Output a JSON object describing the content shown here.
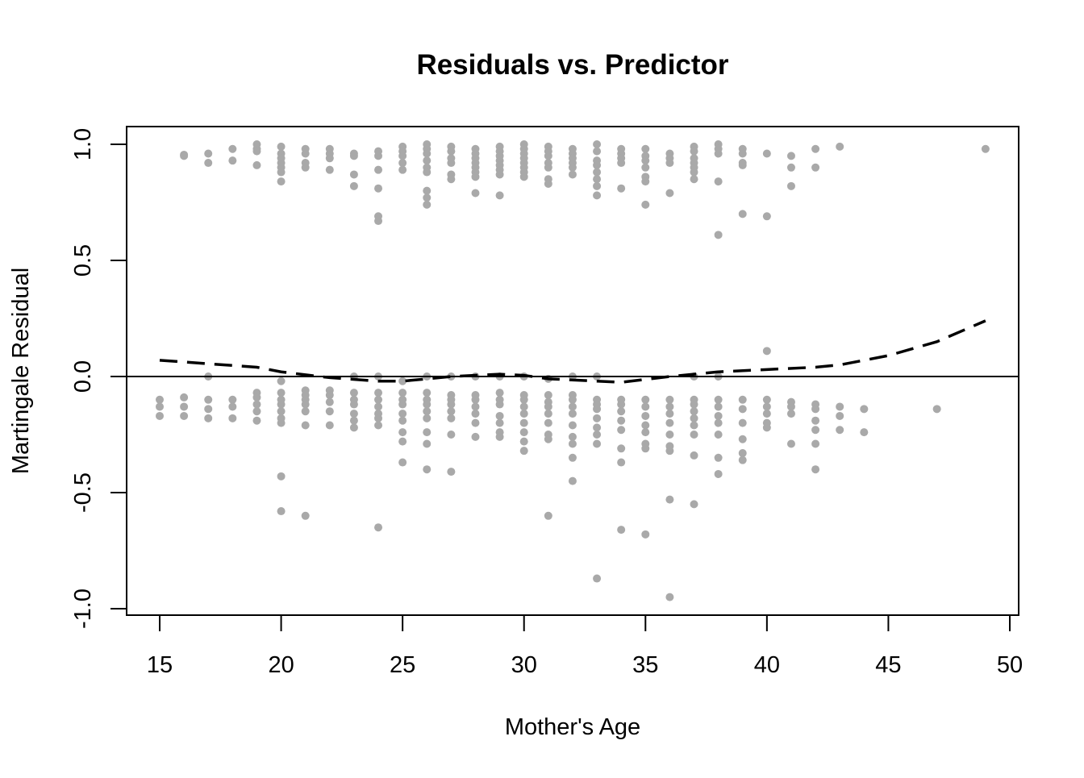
{
  "chart_data": {
    "type": "scatter",
    "title": "Residuals vs. Predictor",
    "xlabel": "Mother's Age",
    "ylabel": "Martingale Residual",
    "xlim": [
      13.7,
      50.4
    ],
    "ylim": [
      -1.03,
      1.08
    ],
    "xticks": [
      "15",
      "20",
      "25",
      "30",
      "35",
      "40",
      "45",
      "50"
    ],
    "yticks": [
      "-1.0",
      "-0.5",
      "0.0",
      "0.5",
      "1.0"
    ],
    "grid": false,
    "reference_line_y": 0,
    "point_color": "#A9A9A9",
    "smooth_color": "#000000",
    "points": [
      {
        "x": 15,
        "y": [
          -0.1,
          -0.13,
          -0.17
        ]
      },
      {
        "x": 16,
        "y": [
          0.955,
          0.95,
          -0.09,
          -0.13,
          -0.17
        ]
      },
      {
        "x": 17,
        "y": [
          0.96,
          0.92,
          0,
          -0.1,
          -0.14,
          -0.18
        ]
      },
      {
        "x": 18,
        "y": [
          0.98,
          0.93,
          -0.1,
          -0.13,
          -0.18
        ]
      },
      {
        "x": 19,
        "y": [
          1.0,
          0.98,
          0.97,
          0.91,
          -0.07,
          -0.09,
          -0.12,
          -0.15,
          -0.19
        ]
      },
      {
        "x": 20,
        "y": [
          0.99,
          0.96,
          0.94,
          0.92,
          0.9,
          0.88,
          0.84,
          -0.02,
          -0.07,
          -0.1,
          -0.12,
          -0.15,
          -0.18,
          -0.2,
          -0.43,
          -0.58
        ]
      },
      {
        "x": 21,
        "y": [
          0.98,
          0.96,
          0.92,
          0.9,
          -0.06,
          -0.08,
          -0.1,
          -0.12,
          -0.15,
          -0.21,
          -0.6
        ]
      },
      {
        "x": 22,
        "y": [
          0.98,
          0.96,
          0.94,
          0.89,
          -0.06,
          -0.08,
          -0.11,
          -0.15,
          -0.21
        ]
      },
      {
        "x": 23,
        "y": [
          0.96,
          0.95,
          0.87,
          0.82,
          0,
          -0.07,
          -0.1,
          -0.12,
          -0.16,
          -0.19,
          -0.22
        ]
      },
      {
        "x": 24,
        "y": [
          0.97,
          0.95,
          0.89,
          0.81,
          0.69,
          0.67,
          0,
          -0.07,
          -0.1,
          -0.13,
          -0.16,
          -0.18,
          -0.21,
          -0.65
        ]
      },
      {
        "x": 25,
        "y": [
          0.99,
          0.97,
          0.95,
          0.92,
          0.89,
          -0.02,
          -0.07,
          -0.1,
          -0.12,
          -0.16,
          -0.19,
          -0.24,
          -0.28,
          -0.37
        ]
      },
      {
        "x": 26,
        "y": [
          1.0,
          0.98,
          0.96,
          0.93,
          0.9,
          0.88,
          0.8,
          0.77,
          0.74,
          0,
          -0.07,
          -0.1,
          -0.12,
          -0.15,
          -0.18,
          -0.24,
          -0.29,
          -0.4
        ]
      },
      {
        "x": 27,
        "y": [
          0.99,
          0.97,
          0.94,
          0.92,
          0.87,
          0.85,
          0,
          -0.08,
          -0.1,
          -0.12,
          -0.15,
          -0.18,
          -0.25,
          -0.41
        ]
      },
      {
        "x": 28,
        "y": [
          0.98,
          0.96,
          0.94,
          0.92,
          0.9,
          0.88,
          0.86,
          0.79,
          0,
          -0.08,
          -0.1,
          -0.13,
          -0.16,
          -0.2,
          -0.26
        ]
      },
      {
        "x": 29,
        "y": [
          0.99,
          0.97,
          0.95,
          0.93,
          0.91,
          0.89,
          0.87,
          0.78,
          0,
          -0.07,
          -0.1,
          -0.12,
          -0.17,
          -0.2,
          -0.24,
          -0.26
        ]
      },
      {
        "x": 30,
        "y": [
          1.0,
          0.98,
          0.96,
          0.94,
          0.92,
          0.9,
          0.88,
          0.86,
          0,
          -0.08,
          -0.1,
          -0.13,
          -0.16,
          -0.2,
          -0.24,
          -0.28,
          -0.32
        ]
      },
      {
        "x": 31,
        "y": [
          0.99,
          0.97,
          0.95,
          0.92,
          0.9,
          0.85,
          0.83,
          -0.01,
          -0.08,
          -0.11,
          -0.13,
          -0.16,
          -0.2,
          -0.25,
          -0.27,
          -0.6
        ]
      },
      {
        "x": 32,
        "y": [
          0.98,
          0.96,
          0.94,
          0.92,
          0.9,
          0.87,
          0,
          -0.08,
          -0.1,
          -0.13,
          -0.16,
          -0.21,
          -0.26,
          -0.29,
          -0.35,
          -0.45
        ]
      },
      {
        "x": 33,
        "y": [
          1.0,
          0.97,
          0.93,
          0.91,
          0.88,
          0.85,
          0.82,
          0.78,
          0,
          -0.1,
          -0.12,
          -0.14,
          -0.18,
          -0.22,
          -0.25,
          -0.29,
          -0.87
        ]
      },
      {
        "x": 34,
        "y": [
          0.98,
          0.96,
          0.94,
          0.92,
          0.81,
          -0.1,
          -0.12,
          -0.15,
          -0.19,
          -0.23,
          -0.31,
          -0.37,
          -0.66
        ]
      },
      {
        "x": 35,
        "y": [
          0.98,
          0.95,
          0.93,
          0.9,
          0.86,
          0.84,
          0.74,
          -0.1,
          -0.13,
          -0.17,
          -0.21,
          -0.24,
          -0.29,
          -0.31,
          -0.68
        ]
      },
      {
        "x": 36,
        "y": [
          0.96,
          0.94,
          0.92,
          0.79,
          -0.1,
          -0.13,
          -0.16,
          -0.2,
          -0.25,
          -0.3,
          -0.32,
          -0.53,
          -0.95
        ]
      },
      {
        "x": 37,
        "y": [
          0.99,
          0.97,
          0.94,
          0.92,
          0.9,
          0.88,
          0.85,
          0,
          -0.1,
          -0.12,
          -0.15,
          -0.18,
          -0.21,
          -0.25,
          -0.34,
          -0.55
        ]
      },
      {
        "x": 38,
        "y": [
          1.0,
          0.98,
          0.96,
          0.84,
          0.61,
          0,
          -0.1,
          -0.13,
          -0.17,
          -0.2,
          -0.25,
          -0.35,
          -0.42
        ]
      },
      {
        "x": 39,
        "y": [
          0.98,
          0.96,
          0.92,
          0.91,
          0.7,
          -0.1,
          -0.14,
          -0.2,
          -0.27,
          -0.33,
          -0.36
        ]
      },
      {
        "x": 40,
        "y": [
          0.96,
          0.69,
          0.11,
          -0.1,
          -0.13,
          -0.16,
          -0.2,
          -0.22
        ]
      },
      {
        "x": 41,
        "y": [
          0.95,
          0.9,
          0.82,
          -0.11,
          -0.13,
          -0.16,
          -0.29
        ]
      },
      {
        "x": 42,
        "y": [
          0.98,
          0.9,
          -0.12,
          -0.14,
          -0.19,
          -0.23,
          -0.29,
          -0.4
        ]
      },
      {
        "x": 43,
        "y": [
          0.99,
          -0.13,
          -0.17,
          -0.23
        ]
      },
      {
        "x": 44,
        "y": [
          -0.14,
          -0.24
        ]
      },
      {
        "x": 47,
        "y": [
          -0.14
        ]
      },
      {
        "x": 49,
        "y": [
          0.98
        ]
      }
    ],
    "smooth": {
      "x": [
        15,
        17,
        19,
        20,
        22,
        24,
        25,
        27,
        29,
        30,
        31,
        33,
        34,
        36,
        37,
        38,
        40,
        42,
        43,
        44,
        45,
        47,
        49
      ],
      "y": [
        0.07,
        0.055,
        0.04,
        0.02,
        -0.005,
        -0.02,
        -0.02,
        0,
        0.01,
        0.005,
        -0.01,
        -0.02,
        -0.025,
        0,
        0.01,
        0.02,
        0.03,
        0.04,
        0.05,
        0.07,
        0.09,
        0.15,
        0.24
      ]
    }
  }
}
